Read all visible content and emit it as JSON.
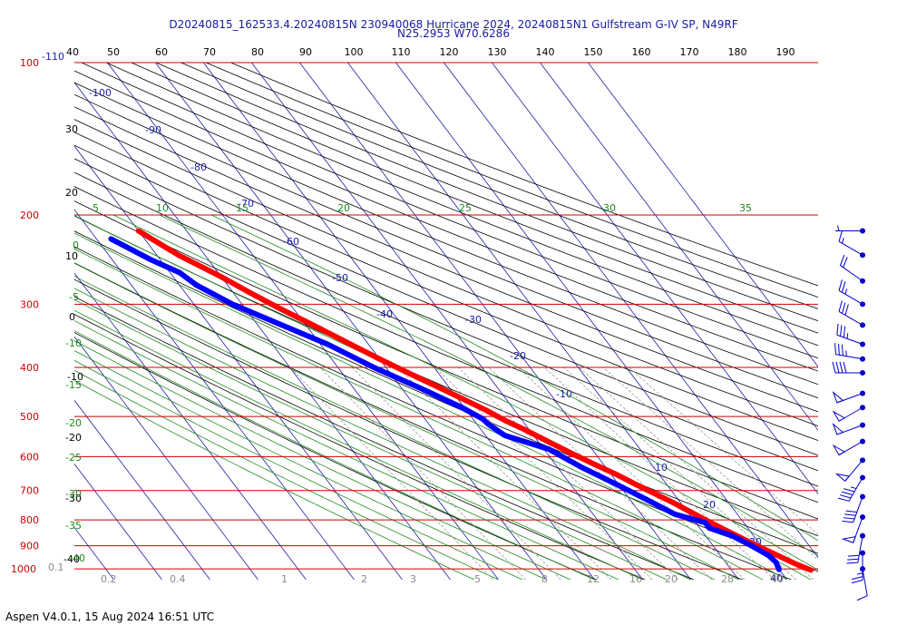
{
  "header": {
    "title_line1": "D20240815_162533.4.20240815N 230940068 Hurricane 2024, 20240815N1 Gulfstream G-IV SP, N49RF",
    "title_line2": "N25.2953 W70.6286"
  },
  "footer": {
    "text": "Aspen V4.0.1, 15 Aug 2024  16:51 UTC"
  },
  "colors": {
    "temperature": "#ff0000",
    "dewpoint": "#0000ff",
    "isobar": "#cc0000",
    "isotherm": "#1c1ca6",
    "dry_adiabat": "#000000",
    "moist_adiabat": "#1f8a1f",
    "mixing_ratio": "#9a9a9a",
    "barb": "#0000cc"
  },
  "chart_data": {
    "type": "line",
    "chart_kind": "skew-T log-P",
    "pressure_levels": [
      100,
      200,
      300,
      400,
      500,
      600,
      700,
      800,
      900,
      1000
    ],
    "pressure_labels": [
      "100",
      "200",
      "300",
      "400",
      "500",
      "600",
      "700",
      "800",
      "900",
      "1000"
    ],
    "top_extra_label": "-110",
    "top_axis_labels": [
      "40",
      "50",
      "60",
      "70",
      "80",
      "90",
      "100",
      "110",
      "120",
      "130",
      "140",
      "150",
      "160",
      "170",
      "180",
      "190"
    ],
    "isotherm_labels": [
      "-100",
      "-90",
      "-80",
      "-70",
      "-60",
      "-50",
      "-40",
      "-30",
      "-20",
      "-10",
      "10",
      "20",
      "30",
      "40"
    ],
    "isotherm_values": [
      -100,
      -90,
      -80,
      -70,
      -60,
      -50,
      -40,
      -30,
      -20,
      -10,
      10,
      20,
      30,
      40
    ],
    "left_axis_labels": [
      "30",
      "20",
      "10",
      "0",
      "-10",
      "-20",
      "-30",
      "-40"
    ],
    "moist_adiabat_labels_top": [
      "5",
      "10",
      "15",
      "20",
      "25",
      "30",
      "35"
    ],
    "moist_adiabat_labels_left": [
      "0",
      "-5",
      "-10",
      "-15",
      "-20",
      "-25",
      "-30",
      "-35",
      "-40"
    ],
    "mixing_ratio_labels": [
      "0.1",
      "0.2",
      "0.4",
      "1",
      "2",
      "3",
      "5",
      "8",
      "12",
      "16",
      "20",
      "28",
      "40"
    ],
    "series": [
      {
        "name": "Temperature",
        "points": [
          {
            "p": 215,
            "t": -60.0
          },
          {
            "p": 240,
            "t": -55.5
          },
          {
            "p": 265,
            "t": -50.0
          },
          {
            "p": 285,
            "t": -46.5
          },
          {
            "p": 305,
            "t": -43.0
          },
          {
            "p": 330,
            "t": -38.5
          },
          {
            "p": 355,
            "t": -34.5
          },
          {
            "p": 385,
            "t": -30.0
          },
          {
            "p": 415,
            "t": -25.5
          },
          {
            "p": 450,
            "t": -20.5
          },
          {
            "p": 485,
            "t": -16.0
          },
          {
            "p": 510,
            "t": -13.5
          },
          {
            "p": 530,
            "t": -11.0
          },
          {
            "p": 560,
            "t": -8.0
          },
          {
            "p": 590,
            "t": -5.0
          },
          {
            "p": 620,
            "t": -2.0
          },
          {
            "p": 650,
            "t": 1.0
          },
          {
            "p": 680,
            "t": 3.5
          },
          {
            "p": 710,
            "t": 6.0
          },
          {
            "p": 740,
            "t": 8.5
          },
          {
            "p": 770,
            "t": 10.5
          },
          {
            "p": 800,
            "t": 12.5
          },
          {
            "p": 830,
            "t": 14.5
          },
          {
            "p": 860,
            "t": 16.5
          },
          {
            "p": 890,
            "t": 18.5
          },
          {
            "p": 920,
            "t": 20.5
          },
          {
            "p": 950,
            "t": 22.5
          },
          {
            "p": 980,
            "t": 24.5
          },
          {
            "p": 1005,
            "t": 26.5
          }
        ]
      },
      {
        "name": "Dew Point",
        "points": [
          {
            "p": 223,
            "t": -67.0
          },
          {
            "p": 245,
            "t": -62.0
          },
          {
            "p": 260,
            "t": -58.0
          },
          {
            "p": 275,
            "t": -56.5
          },
          {
            "p": 300,
            "t": -52.0
          },
          {
            "p": 330,
            "t": -45.0
          },
          {
            "p": 360,
            "t": -38.5
          },
          {
            "p": 400,
            "t": -32.5
          },
          {
            "p": 440,
            "t": -26.0
          },
          {
            "p": 480,
            "t": -20.5
          },
          {
            "p": 505,
            "t": -18.0
          },
          {
            "p": 520,
            "t": -17.5
          },
          {
            "p": 545,
            "t": -16.0
          },
          {
            "p": 580,
            "t": -9.0
          },
          {
            "p": 630,
            "t": -5.0
          },
          {
            "p": 680,
            "t": -0.5
          },
          {
            "p": 730,
            "t": 3.5
          },
          {
            "p": 780,
            "t": 7.0
          },
          {
            "p": 810,
            "t": 12.0
          },
          {
            "p": 830,
            "t": 12.0
          },
          {
            "p": 860,
            "t": 15.5
          },
          {
            "p": 900,
            "t": 18.0
          },
          {
            "p": 940,
            "t": 20.0
          },
          {
            "p": 970,
            "t": 20.5
          },
          {
            "p": 1002,
            "t": 20.0
          }
        ]
      }
    ],
    "wind_barbs": [
      {
        "p": 215,
        "speed_kt": 5,
        "dir_deg": 270
      },
      {
        "p": 240,
        "speed_kt": 15,
        "dir_deg": 300
      },
      {
        "p": 270,
        "speed_kt": 20,
        "dir_deg": 305
      },
      {
        "p": 300,
        "speed_kt": 25,
        "dir_deg": 300
      },
      {
        "p": 330,
        "speed_kt": 30,
        "dir_deg": 300
      },
      {
        "p": 360,
        "speed_kt": 35,
        "dir_deg": 290
      },
      {
        "p": 385,
        "speed_kt": 35,
        "dir_deg": 280
      },
      {
        "p": 410,
        "speed_kt": 40,
        "dir_deg": 270
      },
      {
        "p": 450,
        "speed_kt": 50,
        "dir_deg": 250
      },
      {
        "p": 480,
        "speed_kt": 50,
        "dir_deg": 240
      },
      {
        "p": 520,
        "speed_kt": 50,
        "dir_deg": 250
      },
      {
        "p": 560,
        "speed_kt": 50,
        "dir_deg": 240
      },
      {
        "p": 610,
        "speed_kt": 50,
        "dir_deg": 220
      },
      {
        "p": 660,
        "speed_kt": 45,
        "dir_deg": 210
      },
      {
        "p": 720,
        "speed_kt": 40,
        "dir_deg": 200
      },
      {
        "p": 790,
        "speed_kt": 50,
        "dir_deg": 200
      },
      {
        "p": 860,
        "speed_kt": 30,
        "dir_deg": 190
      },
      {
        "p": 930,
        "speed_kt": 25,
        "dir_deg": 180
      },
      {
        "p": 1000,
        "speed_kt": 10,
        "dir_deg": 170
      }
    ]
  }
}
